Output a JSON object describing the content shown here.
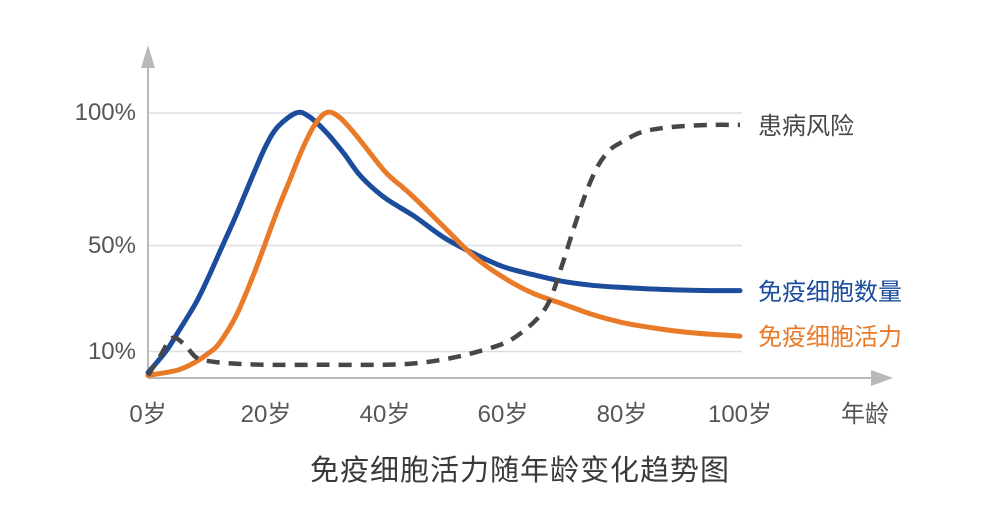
{
  "page": {
    "background": "#ffffff"
  },
  "colors": {
    "axis": "#b9b9b9",
    "grid": "#dedede",
    "tick_text": "#565656",
    "title_text": "#3a3a3a"
  },
  "chart_data": {
    "type": "line",
    "title": "免疫细胞活力随年龄变化趋势图",
    "xlabel": "年龄",
    "ylabel": "",
    "x_axis_unit_label": "年龄",
    "xlim": [
      0,
      100
    ],
    "ylim": [
      0,
      100
    ],
    "grid": "horizontal-only",
    "legend_position": "right-of-line-ends",
    "x_tick_values": [
      0,
      20,
      40,
      60,
      80,
      100
    ],
    "x_tick_labels": [
      "0岁",
      "20岁",
      "40岁",
      "60岁",
      "80岁",
      "100岁"
    ],
    "y_tick_values": [
      100,
      50,
      10
    ],
    "y_tick_labels": [
      "100%",
      "50%",
      "10%"
    ],
    "series": [
      {
        "id": "immune-cell-count",
        "name": "免疫细胞数量",
        "color": "#1c4c9c",
        "line_style": "solid",
        "points": [
          [
            0,
            2
          ],
          [
            3,
            10
          ],
          [
            5,
            17
          ],
          [
            8,
            28
          ],
          [
            10,
            37
          ],
          [
            13,
            52
          ],
          [
            15,
            62
          ],
          [
            18,
            78
          ],
          [
            20,
            88
          ],
          [
            22,
            95
          ],
          [
            25,
            100
          ],
          [
            27,
            99
          ],
          [
            30,
            93
          ],
          [
            33,
            85
          ],
          [
            36,
            76
          ],
          [
            40,
            68
          ],
          [
            45,
            61
          ],
          [
            50,
            53
          ],
          [
            55,
            47
          ],
          [
            60,
            42
          ],
          [
            65,
            39
          ],
          [
            70,
            36.5
          ],
          [
            75,
            35
          ],
          [
            80,
            34.2
          ],
          [
            85,
            33.6
          ],
          [
            90,
            33.2
          ],
          [
            95,
            33
          ],
          [
            100,
            33
          ]
        ]
      },
      {
        "id": "immune-cell-vitality",
        "name": "免疫细胞活力",
        "color": "#e97a28",
        "line_style": "solid",
        "points": [
          [
            0,
            1
          ],
          [
            5,
            3
          ],
          [
            8,
            6
          ],
          [
            10,
            9
          ],
          [
            12,
            13
          ],
          [
            15,
            24
          ],
          [
            18,
            40
          ],
          [
            20,
            52
          ],
          [
            22,
            64
          ],
          [
            24,
            75
          ],
          [
            26,
            86
          ],
          [
            28,
            95
          ],
          [
            30,
            100
          ],
          [
            32,
            99
          ],
          [
            35,
            92
          ],
          [
            40,
            78
          ],
          [
            43,
            72
          ],
          [
            45,
            68
          ],
          [
            50,
            57
          ],
          [
            55,
            46
          ],
          [
            60,
            38
          ],
          [
            65,
            32
          ],
          [
            70,
            28
          ],
          [
            75,
            24
          ],
          [
            80,
            21
          ],
          [
            85,
            19
          ],
          [
            90,
            17.5
          ],
          [
            95,
            16.5
          ],
          [
            100,
            15.8
          ]
        ]
      },
      {
        "id": "disease-risk",
        "name": "患病风险",
        "color": "#474747",
        "line_style": "dashed",
        "points": [
          [
            0,
            1
          ],
          [
            2,
            8
          ],
          [
            4,
            15
          ],
          [
            6,
            13
          ],
          [
            8,
            8
          ],
          [
            10,
            6.5
          ],
          [
            14,
            5.5
          ],
          [
            20,
            5
          ],
          [
            30,
            5
          ],
          [
            40,
            5
          ],
          [
            45,
            5.5
          ],
          [
            50,
            7
          ],
          [
            55,
            9.5
          ],
          [
            60,
            13
          ],
          [
            63,
            17
          ],
          [
            66,
            23
          ],
          [
            68,
            30
          ],
          [
            70,
            43
          ],
          [
            71,
            50
          ],
          [
            72,
            57
          ],
          [
            74,
            70
          ],
          [
            76,
            80
          ],
          [
            78,
            86
          ],
          [
            80,
            89
          ],
          [
            83,
            92.5
          ],
          [
            86,
            94
          ],
          [
            90,
            95
          ],
          [
            95,
            95.5
          ],
          [
            100,
            95.5
          ]
        ]
      }
    ]
  }
}
